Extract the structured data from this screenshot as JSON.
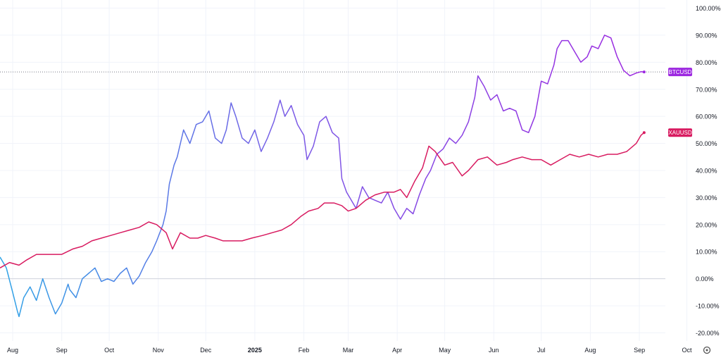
{
  "chart_data": {
    "type": "line",
    "y_unit": "%",
    "ylim": [
      -23,
      103
    ],
    "y_ticks": [
      "100.00%",
      "90.00%",
      "80.00%",
      "70.00%",
      "60.00%",
      "50.00%",
      "40.00%",
      "30.00%",
      "20.00%",
      "10.00%",
      "0.00%",
      "-10.00%",
      "-20.00%"
    ],
    "y_tick_values": [
      100,
      90,
      80,
      70,
      60,
      50,
      40,
      30,
      20,
      10,
      0,
      -10,
      -20
    ],
    "x_ticks": [
      "Aug",
      "Sep",
      "Oct",
      "Nov",
      "Dec",
      "2025",
      "Feb",
      "Mar",
      "Apr",
      "May",
      "Jun",
      "Jul",
      "Aug",
      "Sep",
      "Oct"
    ],
    "x_tick_dates": [
      "2024-08-01",
      "2024-09-01",
      "2024-10-01",
      "2024-11-01",
      "2024-12-01",
      "2025-01-01",
      "2025-02-01",
      "2025-03-01",
      "2025-04-01",
      "2025-05-01",
      "2025-06-01",
      "2025-07-01",
      "2025-08-01",
      "2025-09-01",
      "2025-10-01"
    ],
    "x_range": [
      "2024-07-24",
      "2025-10-03"
    ],
    "bold_ticks": [
      "2025"
    ],
    "grid": true,
    "zero_line": true,
    "crosshair_value": 76.4,
    "series": [
      {
        "name": "BTCUSD",
        "color": "#9c27e0",
        "color_start": "#2ea3e6",
        "dates": [
          "2024-07-24",
          "2024-07-28",
          "2024-08-01",
          "2024-08-04",
          "2024-08-05",
          "2024-08-08",
          "2024-08-12",
          "2024-08-16",
          "2024-08-20",
          "2024-08-24",
          "2024-08-28",
          "2024-09-01",
          "2024-09-05",
          "2024-09-06",
          "2024-09-10",
          "2024-09-14",
          "2024-09-18",
          "2024-09-22",
          "2024-09-26",
          "2024-09-30",
          "2024-10-04",
          "2024-10-08",
          "2024-10-12",
          "2024-10-16",
          "2024-10-20",
          "2024-10-24",
          "2024-10-28",
          "2024-10-31",
          "2024-11-04",
          "2024-11-06",
          "2024-11-08",
          "2024-11-11",
          "2024-11-13",
          "2024-11-17",
          "2024-11-21",
          "2024-11-25",
          "2024-11-29",
          "2024-12-03",
          "2024-12-07",
          "2024-12-11",
          "2024-12-14",
          "2024-12-17",
          "2024-12-20",
          "2024-12-24",
          "2024-12-28",
          "2025-01-01",
          "2025-01-05",
          "2025-01-09",
          "2025-01-13",
          "2025-01-17",
          "2025-01-20",
          "2025-01-24",
          "2025-01-28",
          "2025-02-01",
          "2025-02-03",
          "2025-02-07",
          "2025-02-11",
          "2025-02-15",
          "2025-02-19",
          "2025-02-23",
          "2025-02-25",
          "2025-02-28",
          "2025-03-02",
          "2025-03-06",
          "2025-03-10",
          "2025-03-14",
          "2025-03-18",
          "2025-03-22",
          "2025-03-26",
          "2025-03-30",
          "2025-04-03",
          "2025-04-07",
          "2025-04-11",
          "2025-04-15",
          "2025-04-19",
          "2025-04-22",
          "2025-04-26",
          "2025-04-30",
          "2025-05-04",
          "2025-05-08",
          "2025-05-12",
          "2025-05-16",
          "2025-05-20",
          "2025-05-22",
          "2025-05-26",
          "2025-05-30",
          "2025-06-03",
          "2025-06-07",
          "2025-06-11",
          "2025-06-15",
          "2025-06-19",
          "2025-06-23",
          "2025-06-27",
          "2025-07-01",
          "2025-07-05",
          "2025-07-09",
          "2025-07-11",
          "2025-07-14",
          "2025-07-18",
          "2025-07-22",
          "2025-07-26",
          "2025-07-30",
          "2025-08-02",
          "2025-08-06",
          "2025-08-10",
          "2025-08-14",
          "2025-08-18",
          "2025-08-22",
          "2025-08-26",
          "2025-08-30",
          "2025-09-02",
          "2025-09-04"
        ],
        "values": [
          8,
          4,
          -5,
          -12,
          -14,
          -7,
          -3,
          -8,
          0,
          -7,
          -13,
          -9,
          -2,
          -4,
          -7,
          0,
          2,
          4,
          -1,
          0,
          -1,
          2,
          4,
          -2,
          1,
          6,
          10,
          14,
          20,
          25,
          35,
          42,
          45,
          55,
          50,
          57,
          58,
          62,
          52,
          50,
          55,
          65,
          60,
          52,
          50,
          55,
          47,
          52,
          58,
          66,
          60,
          64,
          57,
          53,
          44,
          49,
          58,
          60,
          54,
          52,
          37,
          32,
          30,
          26,
          34,
          30,
          29,
          28,
          32,
          26,
          22,
          26,
          24,
          31,
          37,
          40,
          46,
          48,
          52,
          50,
          53,
          58,
          67,
          75,
          71,
          66,
          68,
          62,
          63,
          62,
          55,
          54,
          60,
          73,
          72,
          79,
          85,
          88,
          88,
          84,
          80,
          82,
          86,
          85,
          90,
          89,
          82,
          77,
          75,
          76,
          76.5,
          76.4
        ]
      },
      {
        "name": "XAUUSD",
        "color": "#d81b60",
        "dates": [
          "2024-07-24",
          "2024-07-30",
          "2024-08-05",
          "2024-08-10",
          "2024-08-16",
          "2024-08-24",
          "2024-09-01",
          "2024-09-08",
          "2024-09-14",
          "2024-09-20",
          "2024-09-26",
          "2024-10-02",
          "2024-10-08",
          "2024-10-14",
          "2024-10-20",
          "2024-10-26",
          "2024-10-31",
          "2024-11-06",
          "2024-11-10",
          "2024-11-15",
          "2024-11-21",
          "2024-11-26",
          "2024-12-01",
          "2024-12-07",
          "2024-12-12",
          "2024-12-18",
          "2024-12-24",
          "2024-12-30",
          "2025-01-06",
          "2025-01-12",
          "2025-01-18",
          "2025-01-24",
          "2025-01-30",
          "2025-02-04",
          "2025-02-10",
          "2025-02-14",
          "2025-02-20",
          "2025-02-25",
          "2025-03-01",
          "2025-03-06",
          "2025-03-12",
          "2025-03-18",
          "2025-03-24",
          "2025-03-30",
          "2025-04-03",
          "2025-04-07",
          "2025-04-12",
          "2025-04-17",
          "2025-04-21",
          "2025-04-25",
          "2025-05-01",
          "2025-05-06",
          "2025-05-12",
          "2025-05-16",
          "2025-05-22",
          "2025-05-28",
          "2025-06-03",
          "2025-06-09",
          "2025-06-13",
          "2025-06-19",
          "2025-06-25",
          "2025-07-01",
          "2025-07-07",
          "2025-07-13",
          "2025-07-19",
          "2025-07-25",
          "2025-07-31",
          "2025-08-06",
          "2025-08-12",
          "2025-08-18",
          "2025-08-24",
          "2025-08-30",
          "2025-09-02",
          "2025-09-04"
        ],
        "values": [
          4,
          6,
          5,
          7,
          9,
          9,
          9,
          11,
          12,
          14,
          15,
          16,
          17,
          18,
          19,
          21,
          20,
          17,
          11,
          17,
          15,
          15,
          16,
          15,
          14,
          14,
          14,
          15,
          16,
          17,
          18,
          20,
          23,
          25,
          26,
          28,
          28,
          27,
          25,
          26,
          29,
          31,
          32,
          32,
          33,
          30,
          36,
          41,
          49,
          47,
          42,
          43,
          38,
          40,
          44,
          45,
          42,
          43,
          44,
          45,
          44,
          44,
          42,
          44,
          46,
          45,
          46,
          45,
          46,
          46,
          47,
          50,
          53,
          54
        ]
      }
    ]
  },
  "ui": {
    "settings_icon": "gear-icon"
  }
}
